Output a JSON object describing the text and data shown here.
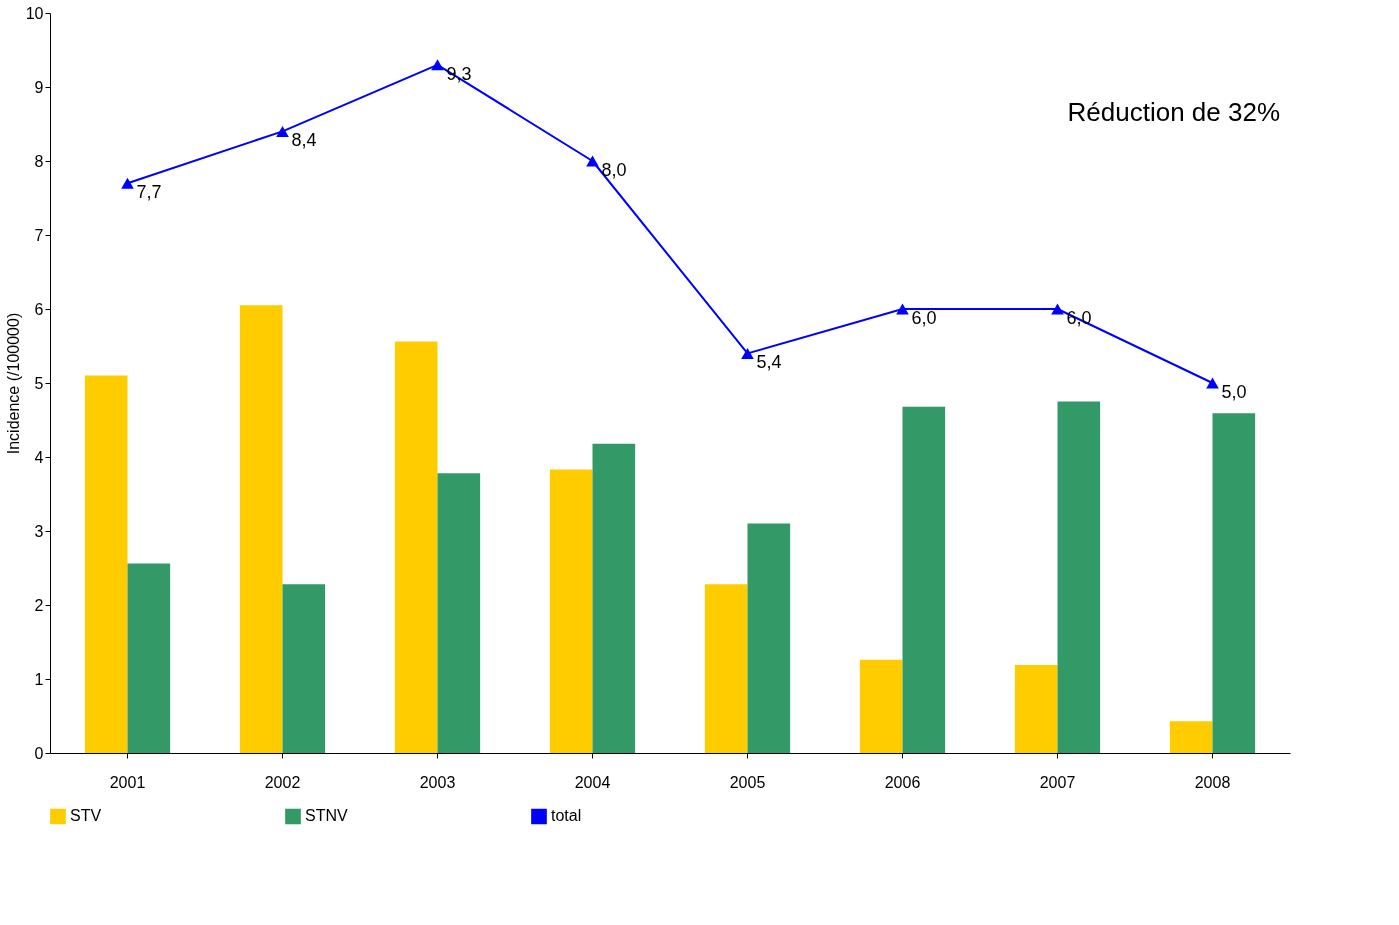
{
  "chart_data": {
    "type": "bar",
    "ylabel": "Incidence (/100000)",
    "categories": [
      "2001",
      "2002",
      "2003",
      "2004",
      "2005",
      "2006",
      "2007",
      "2008"
    ],
    "series": [
      {
        "name": "STV",
        "color": "#ffcc00",
        "values": [
          5.1,
          6.05,
          5.56,
          3.83,
          2.28,
          1.26,
          1.19,
          0.43
        ]
      },
      {
        "name": "STNV",
        "color": "#339966",
        "values": [
          2.56,
          2.28,
          3.78,
          4.18,
          3.1,
          4.68,
          4.75,
          4.59
        ]
      },
      {
        "name": "total",
        "type": "line",
        "color": "#0000ff",
        "marker": "triangle",
        "values": [
          7.7,
          8.4,
          9.3,
          8.0,
          5.4,
          6.0,
          6.0,
          5.0
        ],
        "value_labels": [
          "7,7",
          "8,4",
          "9,3",
          "8,0",
          "5,4",
          "6,0",
          "6,0",
          "5,0"
        ]
      }
    ],
    "ylim": [
      0,
      10
    ],
    "yticks": [
      0,
      1,
      2,
      3,
      4,
      5,
      6,
      7,
      8,
      9,
      10
    ],
    "grid": false,
    "legend": "bottom",
    "annotations": [
      "Réduction de 32%"
    ]
  }
}
